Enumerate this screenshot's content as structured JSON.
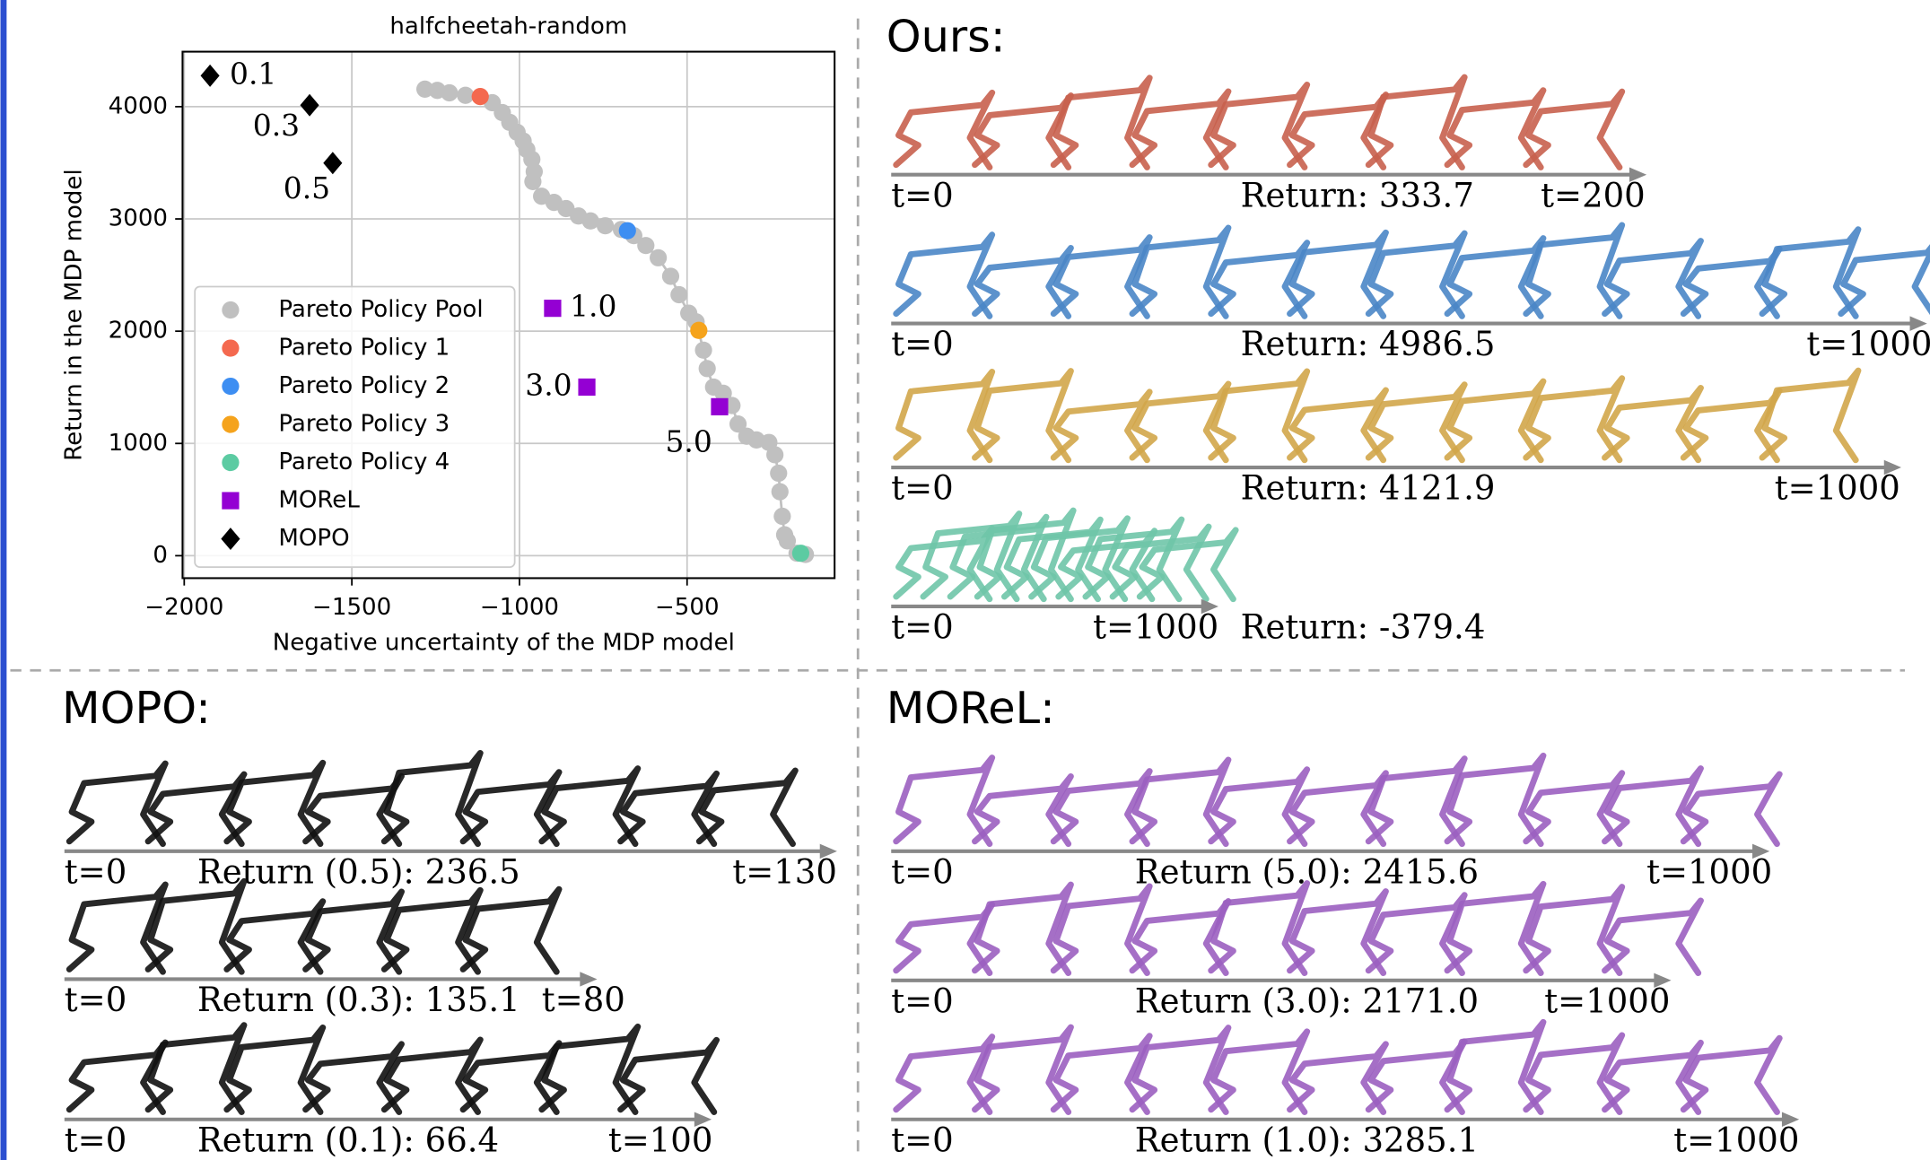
{
  "chart_data": {
    "type": "scatter",
    "title": "halfcheetah-random",
    "x_label": "Negative uncertainty of the MDP model",
    "y_label": "Return in the MDP model",
    "xlim": [
      -2005,
      -60
    ],
    "ylim": [
      -200,
      4490
    ],
    "xticks": [
      {
        "value": -2000,
        "label": "−2000"
      },
      {
        "value": -1500,
        "label": "−1500"
      },
      {
        "value": -1000,
        "label": "−1000"
      },
      {
        "value": -500,
        "label": "−500"
      }
    ],
    "yticks": [
      0,
      1000,
      2000,
      3000,
      4000
    ],
    "grid": true,
    "legend": "lower left",
    "series": [
      {
        "name": "Pareto Policy Pool",
        "color": "#c0c0c0",
        "marker": "circle",
        "x": [
          -1282,
          -1245,
          -1209,
          -1161,
          -1081,
          -1051,
          -1029,
          -1007,
          -989,
          -978,
          -963,
          -956,
          -960,
          -934,
          -897,
          -861,
          -824,
          -788,
          -744,
          -696,
          -659,
          -623,
          -586,
          -549,
          -524,
          -495,
          -473,
          -451,
          -440,
          -421,
          -392,
          -366,
          -348,
          -322,
          -293,
          -256,
          -238,
          -227,
          -223,
          -216,
          -209,
          -201,
          -172,
          -147
        ],
        "values": [
          4156,
          4145,
          4123,
          4101,
          4035,
          3947,
          3860,
          3772,
          3695,
          3618,
          3531,
          3421,
          3333,
          3202,
          3147,
          3092,
          3026,
          2982,
          2939,
          2906,
          2851,
          2763,
          2654,
          2489,
          2325,
          2160,
          2083,
          1831,
          1667,
          1502,
          1447,
          1338,
          1173,
          1064,
          1031,
          1009,
          899,
          735,
          570,
          351,
          186,
          132,
          22,
          11
        ]
      },
      {
        "name": "Pareto Policy 1",
        "color": "#f4694f",
        "marker": "circle",
        "x": [
          -1117
        ],
        "values": [
          4090
        ]
      },
      {
        "name": "Pareto Policy 2",
        "color": "#3d8ef2",
        "marker": "circle",
        "x": [
          -678
        ],
        "values": [
          2895
        ]
      },
      {
        "name": "Pareto Policy 3",
        "color": "#f5a31c",
        "marker": "circle",
        "x": [
          -465
        ],
        "values": [
          2007
        ]
      },
      {
        "name": "Pareto Policy 4",
        "color": "#5ccba2",
        "marker": "circle",
        "x": [
          -161
        ],
        "values": [
          22
        ]
      },
      {
        "name": "MOReL",
        "color": "#9400d3",
        "marker": "square",
        "x": [
          -901,
          -799,
          -403
        ],
        "values": [
          2204,
          1502,
          1327
        ],
        "point_labels": [
          "1.0",
          "3.0",
          "5.0"
        ]
      },
      {
        "name": "MOPO",
        "color": "#000000",
        "marker": "diamond",
        "x": [
          -1923,
          -1626,
          -1557
        ],
        "values": [
          4276,
          4013,
          3498
        ],
        "point_labels": [
          "0.1",
          "0.3",
          "0.5"
        ]
      }
    ]
  },
  "panels": [
    {
      "title": "Ours:",
      "rows": [
        {
          "start": "t=0",
          "return": "Return: 333.7",
          "end": "t=200"
        },
        {
          "start": "t=0",
          "return": "Return: 4986.5",
          "end": "t=1000"
        },
        {
          "start": "t=0",
          "return": "Return: 4121.9",
          "end": "t=1000"
        },
        {
          "start": "t=0",
          "return": "Return: -379.4",
          "end": "t=1000"
        }
      ]
    },
    {
      "title": "MOPO:",
      "rows": [
        {
          "start": "t=0",
          "return": "Return (0.5): 236.5",
          "end": "t=130"
        },
        {
          "start": "t=0",
          "return": "Return (0.3): 135.1",
          "end": "t=80"
        },
        {
          "start": "t=0",
          "return": "Return (0.1): 66.4",
          "end": "t=100"
        }
      ]
    },
    {
      "title": "MOReL:",
      "rows": [
        {
          "start": "t=0",
          "return": "Return (5.0): 2415.6",
          "end": "t=1000"
        },
        {
          "start": "t=0",
          "return": "Return (3.0): 2171.0",
          "end": "t=1000"
        },
        {
          "start": "t=0",
          "return": "Return (1.0): 3285.1",
          "end": "t=1000"
        }
      ]
    }
  ]
}
